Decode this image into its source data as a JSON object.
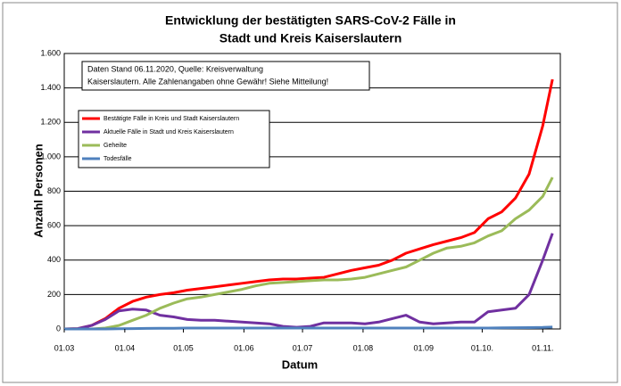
{
  "chart_data": {
    "type": "line",
    "title": [
      "Entwicklung der bestätigten SARS-CoV-2 Fälle in",
      "Stadt und Kreis Kaiserslautern"
    ],
    "annotation": [
      "Daten Stand 06.11.2020, Quelle: Kreisverwaltung",
      "Kaiserslautern. Alle Zahlenangaben ohne Gewähr! Siehe Mitteilung!"
    ],
    "xlabel": "Datum",
    "ylabel": "Anzahl Personen",
    "x": [
      "01.03",
      "08.03",
      "15.03",
      "22.03",
      "29.03",
      "05.04",
      "12.04",
      "19.04",
      "26.04",
      "03.05",
      "10.05",
      "17.05",
      "24.05",
      "31.05",
      "07.06",
      "14.06",
      "21.06",
      "28.06",
      "05.07",
      "12.07",
      "19.07",
      "26.07",
      "02.08",
      "09.08",
      "16.08",
      "23.08",
      "30.08",
      "06.09",
      "13.09",
      "20.09",
      "27.09",
      "04.10",
      "11.10",
      "18.10",
      "25.10",
      "01.11",
      "06.11"
    ],
    "series": [
      {
        "name": "Bestätigte Fälle in Kreis und Stadt Kaiserslautern",
        "color": "#ff0000",
        "values": [
          0,
          2,
          20,
          60,
          120,
          160,
          185,
          200,
          210,
          225,
          235,
          245,
          255,
          265,
          275,
          285,
          290,
          290,
          295,
          300,
          320,
          340,
          355,
          370,
          400,
          440,
          465,
          490,
          510,
          530,
          560,
          640,
          680,
          760,
          900,
          1180,
          1450
        ]
      },
      {
        "name": "Aktuelle Fälle in Stadt und Kreis Kaiserslautern",
        "color": "#7030a0",
        "values": [
          0,
          2,
          20,
          55,
          105,
          115,
          110,
          80,
          70,
          55,
          50,
          50,
          45,
          40,
          35,
          30,
          15,
          10,
          15,
          35,
          35,
          35,
          30,
          40,
          60,
          80,
          40,
          30,
          35,
          40,
          40,
          100,
          110,
          120,
          200,
          400,
          555
        ]
      },
      {
        "name": "Geheilte",
        "color": "#9bbb59",
        "values": [
          0,
          0,
          0,
          5,
          20,
          50,
          80,
          120,
          150,
          175,
          185,
          200,
          215,
          230,
          250,
          265,
          270,
          275,
          280,
          285,
          285,
          290,
          300,
          320,
          340,
          360,
          400,
          440,
          470,
          480,
          500,
          540,
          570,
          640,
          690,
          770,
          880
        ]
      },
      {
        "name": "Todesfälle",
        "color": "#4f81bd",
        "values": [
          0,
          0,
          0,
          0,
          1,
          2,
          3,
          4,
          4,
          5,
          5,
          5,
          5,
          5,
          5,
          5,
          5,
          5,
          5,
          5,
          5,
          5,
          5,
          5,
          5,
          5,
          5,
          5,
          5,
          5,
          5,
          5,
          6,
          7,
          8,
          9,
          11
        ]
      }
    ],
    "xlim": [
      "01.03",
      "10.11"
    ],
    "xticks": [
      "01.03",
      "01.04",
      "01.05",
      "01.06",
      "01.07",
      "01.08",
      "01.09",
      {
        "value": "01.10",
        "label": "01.10."
      },
      {
        "value": "01.11",
        "label": "01.11."
      }
    ],
    "ylim": [
      0,
      1600
    ],
    "yticks": [
      0,
      200,
      400,
      600,
      800,
      {
        "value": 1000,
        "label": "1.000"
      },
      {
        "value": 1200,
        "label": "1.200"
      },
      {
        "value": 1400,
        "label": "1.400"
      },
      {
        "value": 1600,
        "label": "1.600"
      }
    ],
    "grid": true
  }
}
